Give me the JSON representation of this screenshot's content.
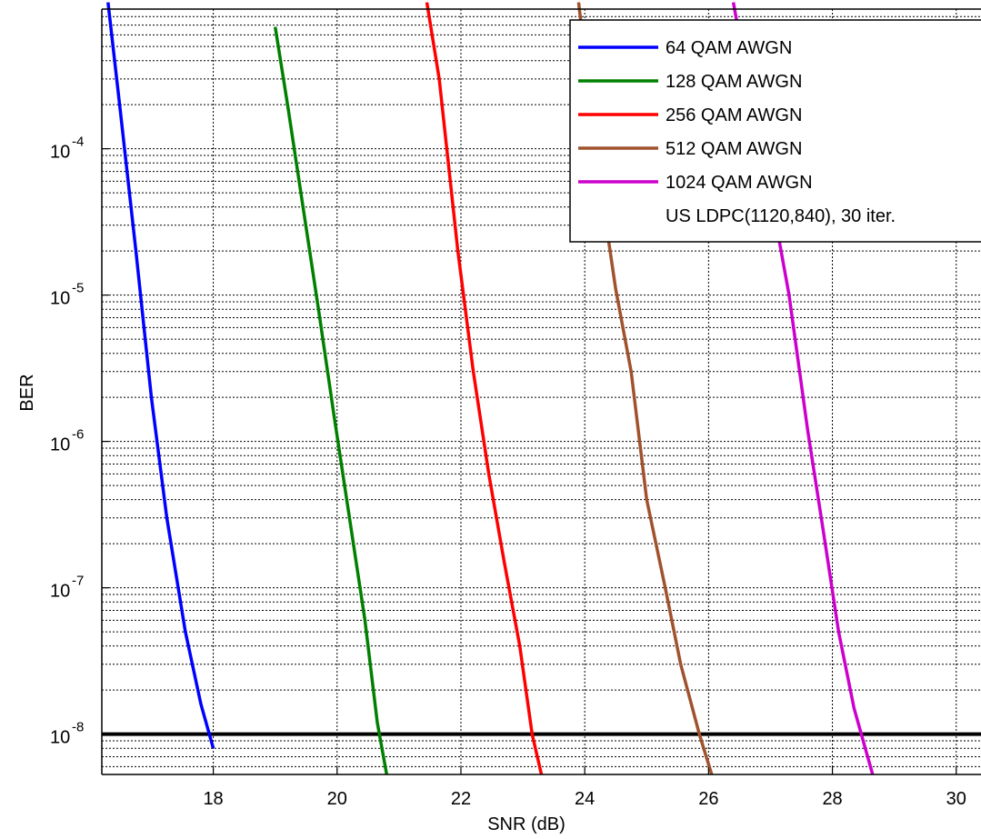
{
  "chart_data": {
    "type": "line",
    "xlabel": "SNR (dB)",
    "ylabel": "BER",
    "x_scale": "linear",
    "y_scale": "log",
    "xlim": [
      16.2,
      30.4
    ],
    "ylim": [
      5.3e-09,
      0.0009
    ],
    "x_ticks": [
      18,
      20,
      22,
      24,
      26,
      28,
      30
    ],
    "x_tick_labels": [
      "18",
      "20",
      "22",
      "24",
      "26",
      "28",
      "30"
    ],
    "y_ticks": [
      {
        "value": 1e-08,
        "base": "10",
        "exp": "-8"
      },
      {
        "value": 1e-07,
        "base": "10",
        "exp": "-7"
      },
      {
        "value": 1e-06,
        "base": "10",
        "exp": "-6"
      },
      {
        "value": 1e-05,
        "base": "10",
        "exp": "-5"
      },
      {
        "value": 0.0001,
        "base": "10",
        "exp": "-4"
      }
    ],
    "grid": true,
    "grid_style": "dotted",
    "reference_line": {
      "y": 1e-08,
      "color": "#000000"
    },
    "legend_position": "top-right",
    "legend_note": "US LDPC(1120,840), 30 iter.",
    "series": [
      {
        "name": "64 QAM AWGN",
        "color": "#0000ff",
        "x": [
          16.3,
          16.5,
          16.75,
          17.0,
          17.25,
          17.55,
          17.8,
          18.0
        ],
        "y": [
          0.001,
          0.00018,
          2e-05,
          2e-06,
          3e-07,
          5e-08,
          1.6e-08,
          8e-09
        ]
      },
      {
        "name": "128 QAM AWGN",
        "color": "#008000",
        "x": [
          19.0,
          19.2,
          19.45,
          19.7,
          19.95,
          20.2,
          20.45,
          20.65,
          20.8
        ],
        "y": [
          0.00068,
          0.0002,
          4e-05,
          8e-06,
          1.5e-06,
          3e-07,
          6e-08,
          1.2e-08,
          5.3e-09
        ]
      },
      {
        "name": "256 QAM AWGN",
        "color": "#ff0000",
        "x": [
          21.45,
          21.65,
          21.95,
          22.2,
          22.45,
          22.7,
          22.95,
          23.15,
          23.3
        ],
        "y": [
          0.001,
          0.0003,
          2e-05,
          3e-06,
          6e-07,
          1.5e-07,
          4e-08,
          1e-08,
          5.3e-09
        ]
      },
      {
        "name": "512 QAM AWGN",
        "color": "#a0522d",
        "x": [
          23.9,
          24.2,
          24.5,
          24.75,
          25.0,
          25.3,
          25.55,
          25.85,
          26.05
        ],
        "y": [
          0.001,
          8e-05,
          1.1e-05,
          3e-06,
          4e-07,
          1e-07,
          3e-08,
          1e-08,
          5.3e-09
        ]
      },
      {
        "name": "1024 QAM AWGN",
        "color": "#cc00cc",
        "x": [
          26.4,
          26.7,
          27.0,
          27.3,
          27.6,
          27.85,
          28.1,
          28.35,
          28.65
        ],
        "y": [
          0.001,
          0.0002,
          5e-05,
          1e-05,
          1.2e-06,
          2.5e-07,
          5e-08,
          1.5e-08,
          5.3e-09
        ]
      }
    ]
  }
}
